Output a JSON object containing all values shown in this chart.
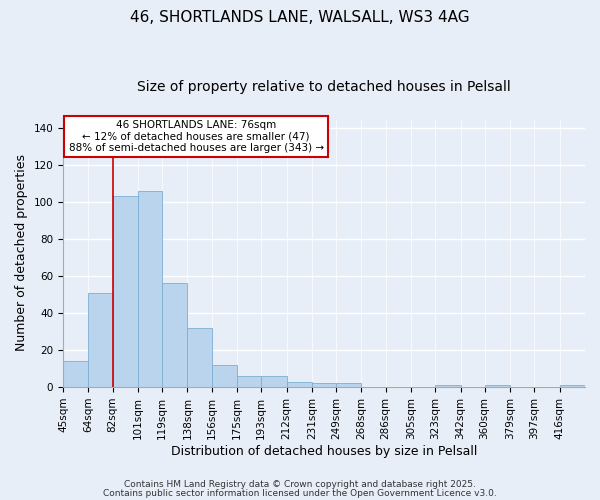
{
  "title_line1": "46, SHORTLANDS LANE, WALSALL, WS3 4AG",
  "title_line2": "Size of property relative to detached houses in Pelsall",
  "xlabel": "Distribution of detached houses by size in Pelsall",
  "ylabel": "Number of detached properties",
  "bin_labels": [
    "45sqm",
    "64sqm",
    "82sqm",
    "101sqm",
    "119sqm",
    "138sqm",
    "156sqm",
    "175sqm",
    "193sqm",
    "212sqm",
    "231sqm",
    "249sqm",
    "268sqm",
    "286sqm",
    "305sqm",
    "323sqm",
    "342sqm",
    "360sqm",
    "379sqm",
    "397sqm",
    "416sqm"
  ],
  "bin_edges": [
    45,
    64,
    82,
    101,
    119,
    138,
    156,
    175,
    193,
    212,
    231,
    249,
    268,
    286,
    305,
    323,
    342,
    360,
    379,
    397,
    416,
    435
  ],
  "bar_heights": [
    14,
    51,
    103,
    106,
    56,
    32,
    12,
    6,
    6,
    3,
    2,
    2,
    0,
    0,
    0,
    1,
    0,
    1,
    0,
    0,
    1
  ],
  "bar_color": "#bad4ed",
  "bar_edge_color": "#7bafd4",
  "ref_line_x": 82,
  "ref_line_color": "#cc0000",
  "ylim": [
    0,
    145
  ],
  "yticks": [
    0,
    20,
    40,
    60,
    80,
    100,
    120,
    140
  ],
  "annotation_title": "46 SHORTLANDS LANE: 76sqm",
  "annotation_line1": "← 12% of detached houses are smaller (47)",
  "annotation_line2": "88% of semi-detached houses are larger (343) →",
  "annotation_box_color": "#ffffff",
  "annotation_box_edge_color": "#cc0000",
  "footer_line1": "Contains HM Land Registry data © Crown copyright and database right 2025.",
  "footer_line2": "Contains public sector information licensed under the Open Government Licence v3.0.",
  "background_color": "#e8eef8",
  "grid_color": "#ffffff",
  "title_fontsize": 11,
  "subtitle_fontsize": 10,
  "axis_label_fontsize": 9,
  "tick_fontsize": 7.5,
  "annotation_fontsize": 7.5,
  "footer_fontsize": 6.5
}
